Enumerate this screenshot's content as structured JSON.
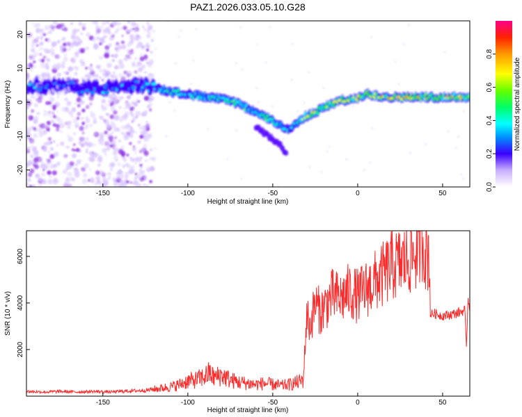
{
  "title": "PAZ1.2026.033.05.10.G28",
  "chart_data": [
    {
      "type": "heatmap",
      "xlabel": "Height of straight line (km)",
      "ylabel": "Frequency (Hz)",
      "xlim": [
        -195,
        66
      ],
      "ylim": [
        -25,
        24
      ],
      "xticks": [
        -150,
        -100,
        -50,
        0,
        50
      ],
      "yticks": [
        -20,
        -10,
        0,
        10,
        20
      ],
      "colorbar": {
        "label": "Normalized spectral amplitude",
        "range": [
          0,
          1
        ],
        "ticks": [
          "0.0",
          "0.2",
          "0.4",
          "0.6",
          "0.8"
        ],
        "tick_values": [
          0,
          0.2,
          0.4,
          0.6,
          0.8
        ],
        "colormap": [
          "#ffffff",
          "#c9b0ff",
          "#8a2be2",
          "#3a00ff",
          "#0090ff",
          "#00ffff",
          "#00ff66",
          "#66ff00",
          "#ffff00",
          "#ff9900",
          "#ff2200",
          "#ff0088"
        ]
      },
      "ridge": {
        "heights": [
          -195,
          -170,
          -150,
          -130,
          -120,
          -110,
          -100,
          -90,
          -80,
          -70,
          -60,
          -50,
          -45,
          -40,
          -35,
          -30,
          -25,
          -20,
          -10,
          0,
          5,
          10,
          20,
          30,
          40,
          50,
          60,
          66
        ],
        "frequencies": [
          5,
          4.5,
          4,
          5,
          4.5,
          3,
          2.5,
          1.5,
          1,
          -0.5,
          -3,
          -5.5,
          -7,
          -8,
          -6,
          -4,
          -3,
          -1.5,
          0.5,
          1,
          2.5,
          2,
          1.5,
          1.5,
          1.5,
          1.5,
          1.5,
          1.5
        ],
        "amplitudes": [
          0.35,
          0.35,
          0.38,
          0.4,
          0.42,
          0.5,
          0.52,
          0.55,
          0.5,
          0.55,
          0.55,
          0.55,
          0.55,
          0.45,
          0.55,
          0.7,
          0.75,
          0.75,
          0.75,
          0.8,
          0.85,
          0.85,
          0.85,
          0.85,
          0.85,
          0.8,
          0.8,
          0.75
        ]
      },
      "secondary_ridge": {
        "heights": [
          -60,
          -55,
          -50,
          -45,
          -42
        ],
        "frequencies": [
          -7,
          -9,
          -11,
          -13,
          -15
        ],
        "amplitude": 0.3
      },
      "noise_region": {
        "height_range": [
          -195,
          -120
        ],
        "frequency_range": [
          -25,
          24
        ],
        "amplitude": 0.15
      }
    },
    {
      "type": "line",
      "xlabel": "Height of straight line (km)",
      "ylabel": "SNR (10 * v/v)",
      "xlim": [
        -195,
        66
      ],
      "ylim": [
        0,
        7100
      ],
      "xticks": [
        -150,
        -100,
        -50,
        0,
        50
      ],
      "yticks": [
        2000,
        4000,
        6000
      ],
      "color": "#ff2a2a",
      "series": [
        {
          "name": "",
          "x": [
            -195,
            -185,
            -175,
            -165,
            -155,
            -145,
            -135,
            -125,
            -115,
            -110,
            -105,
            -100,
            -95,
            -90,
            -87,
            -85,
            -80,
            -75,
            -70,
            -65,
            -60,
            -55,
            -50,
            -45,
            -40,
            -35,
            -32,
            -30,
            -28,
            -25,
            -22,
            -20,
            -15,
            -10,
            -5,
            0,
            5,
            10,
            15,
            20,
            25,
            30,
            35,
            38,
            40,
            42,
            43,
            45,
            50,
            55,
            60,
            63,
            64,
            65,
            66
          ],
          "values": [
            200,
            180,
            200,
            180,
            200,
            180,
            220,
            250,
            350,
            400,
            500,
            650,
            700,
            850,
            1000,
            800,
            900,
            700,
            600,
            550,
            500,
            550,
            500,
            450,
            500,
            600,
            700,
            3500,
            3000,
            4000,
            3600,
            3800,
            4300,
            4200,
            4500,
            4300,
            4600,
            4900,
            5200,
            5600,
            5700,
            5900,
            6200,
            6800,
            6200,
            6100,
            3500,
            3550,
            3450,
            3500,
            3600,
            3700,
            2100,
            4200,
            3800
          ]
        }
      ]
    }
  ]
}
